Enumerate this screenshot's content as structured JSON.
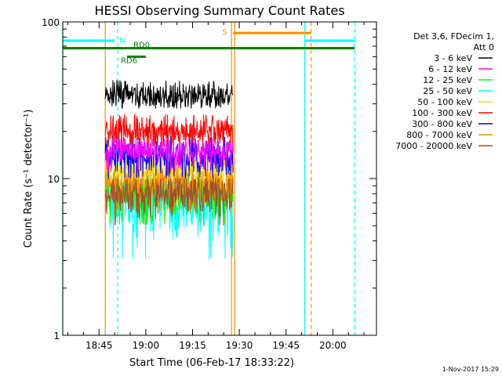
{
  "chart_data": {
    "type": "line",
    "title": "HESSI Observing Summary Count Rates",
    "xlabel": "Start Time (06-Feb-17 18:33:22)",
    "ylabel": "Count Rate (s⁻¹ detector⁻¹)",
    "y_scale": "log",
    "ylim": [
      1,
      100
    ],
    "xlim": [
      "18:33:22",
      "20:14:00"
    ],
    "x_tick_labels": [
      "18:45",
      "19:00",
      "19:15",
      "19:30",
      "19:45",
      "20:00"
    ],
    "y_tick_labels": [
      "1",
      "10",
      "100"
    ],
    "legend": {
      "position": "right",
      "header": [
        "Det 3,6, FDecim 1,",
        "Att 0"
      ],
      "entries": [
        {
          "label": "3 - 6 keV",
          "color": "#000000"
        },
        {
          "label": "6 - 12 keV",
          "color": "#ff00ff"
        },
        {
          "label": "12 - 25 keV",
          "color": "#00ff00"
        },
        {
          "label": "25 - 50 keV",
          "color": "#00ffff"
        },
        {
          "label": "50 - 100 keV",
          "color": "#ffd700"
        },
        {
          "label": "100 - 300 keV",
          "color": "#ff0000"
        },
        {
          "label": "300 - 800 keV",
          "color": "#0000ff"
        },
        {
          "label": "800 - 7000 keV",
          "color": "#ff8c00"
        },
        {
          "label": "7000 - 20000 keV",
          "color": "#a0522d"
        }
      ]
    },
    "series": [
      {
        "name": "3 - 6 keV",
        "color": "#000000",
        "x_range": [
          "18:47",
          "19:28"
        ],
        "y_mean": 34,
        "y_min": 28,
        "y_max": 43
      },
      {
        "name": "6 - 12 keV",
        "color": "#ff00ff",
        "x_range": [
          "18:47",
          "19:28"
        ],
        "y_mean": 15,
        "y_min": 11,
        "y_max": 18
      },
      {
        "name": "12 - 25 keV",
        "color": "#00ff00",
        "x_range": [
          "18:47",
          "19:28"
        ],
        "y_mean": 8,
        "y_min": 5,
        "y_max": 11
      },
      {
        "name": "25 - 50 keV",
        "color": "#00ffff",
        "x_range": [
          "18:47",
          "19:28"
        ],
        "y_mean": 7,
        "y_min": 3,
        "y_max": 10
      },
      {
        "name": "50 - 100 keV",
        "color": "#ffd700",
        "x_range": [
          "18:47",
          "19:28"
        ],
        "y_mean": 11,
        "y_min": 7,
        "y_max": 14
      },
      {
        "name": "100 - 300 keV",
        "color": "#ff0000",
        "x_range": [
          "18:47",
          "19:28"
        ],
        "y_mean": 20,
        "y_min": 16,
        "y_max": 26
      },
      {
        "name": "300 - 800 keV",
        "color": "#0000ff",
        "x_range": [
          "18:47",
          "19:28"
        ],
        "y_mean": 14,
        "y_min": 10,
        "y_max": 19
      },
      {
        "name": "800 - 7000 keV",
        "color": "#ff8c00",
        "x_range": [
          "18:47",
          "19:28"
        ],
        "y_mean": 9,
        "y_min": 6,
        "y_max": 12
      },
      {
        "name": "7000 - 20000 keV",
        "color": "#a0522d",
        "x_range": [
          "18:47",
          "19:28"
        ],
        "y_mean": 8,
        "y_min": 5,
        "y_max": 10
      }
    ],
    "flags": [
      {
        "label": "N",
        "color": "#00ffff",
        "level": 76,
        "segments": [
          [
            "18:33:22",
            "18:50"
          ],
          [
            "19:51",
            "20:07"
          ]
        ]
      },
      {
        "label": "S",
        "color": "#ff8c00",
        "level": 85,
        "segments": [
          [
            "19:28",
            "19:53"
          ]
        ]
      },
      {
        "label": "",
        "color": "#008000",
        "level": 68,
        "segments": [
          [
            "18:33:22",
            "20:07"
          ]
        ]
      },
      {
        "label": "RD6",
        "color": "#008000",
        "level": 60,
        "segments": [
          [
            "18:54",
            "19:00"
          ]
        ]
      },
      {
        "label": "RD0",
        "color": "",
        "level": 0,
        "segments": []
      }
    ],
    "vertical_lines": [
      {
        "x": "18:33:22",
        "color": "#00ffff",
        "style": "solid"
      },
      {
        "x": "18:47",
        "color": "#ff8c00",
        "style": "solid"
      },
      {
        "x": "18:51",
        "color": "#00ffff",
        "style": "dashed"
      },
      {
        "x": "19:27:30",
        "color": "#ff8c00",
        "style": "solid"
      },
      {
        "x": "19:28:30",
        "color": "#ff8c00",
        "style": "solid"
      },
      {
        "x": "19:51",
        "color": "#00ffff",
        "style": "solid"
      },
      {
        "x": "19:53",
        "color": "#ff8c00",
        "style": "dashed"
      },
      {
        "x": "20:07",
        "color": "#00ffff",
        "style": "dashed"
      }
    ],
    "grid": false
  },
  "footer": {
    "timestamp": "1-Nov-2017 15:29"
  }
}
